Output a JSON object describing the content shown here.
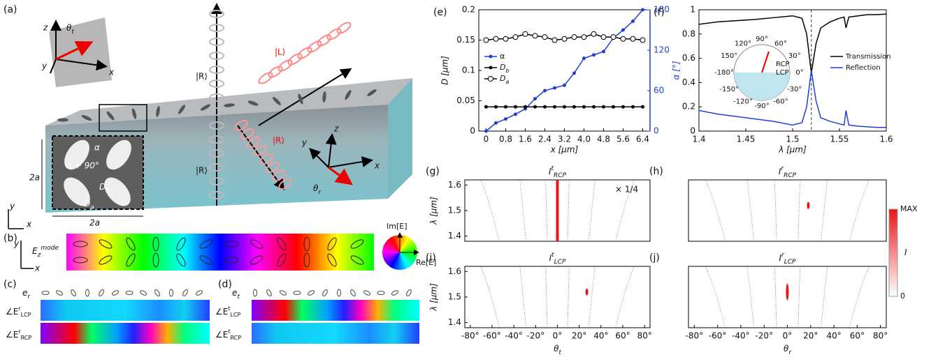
{
  "diagram": {
    "panel_a": {
      "label": "(a)",
      "axes1": [
        "z",
        "y",
        "x"
      ],
      "theta_t": [
        "θ",
        "t"
      ],
      "kets": [
        "|R⟩",
        "|L⟩",
        "|R⟩",
        "|R⟩"
      ],
      "alpha": "α",
      "alpha90": "α + 90°",
      "Db": [
        "D",
        "b"
      ],
      "Da": [
        "D",
        "a"
      ],
      "size": [
        "2a",
        "2a"
      ],
      "axes2": [
        "y",
        "x"
      ],
      "axes3": [
        "z",
        "y",
        "x"
      ],
      "theta_r": [
        "θ",
        "r"
      ]
    },
    "panel_b": {
      "label": "(b)",
      "field": [
        "E",
        "z",
        "mode"
      ],
      "axes": [
        "y",
        "x"
      ],
      "im": "Im[E]",
      "re": "Re[E]"
    },
    "panel_c": {
      "label": "(c)",
      "e": [
        "e",
        "r"
      ],
      "rows": [
        [
          "∠E",
          "r",
          "LCP"
        ],
        [
          "∠E",
          "r",
          "RCP"
        ]
      ]
    },
    "panel_d": {
      "label": "(d)",
      "e": [
        "e",
        "t"
      ],
      "rows": [
        [
          "∠E",
          "t",
          "LCP"
        ],
        [
          "∠E",
          "t",
          "RCP"
        ]
      ]
    }
  },
  "chart_data": [
    {
      "type": "line",
      "label": "(e)",
      "xlabel": "x [μm]",
      "ylabel": "D [μm]",
      "y2label": "α [°]",
      "y2color": "#1f3fd6",
      "x": [
        0,
        0.4,
        0.8,
        1.2,
        1.6,
        2.0,
        2.4,
        2.8,
        3.2,
        3.6,
        4.0,
        4.4,
        4.8,
        5.2,
        5.6,
        6.0,
        6.4
      ],
      "xlim": [
        -0.3,
        6.7
      ],
      "xticks": [
        0,
        0.8,
        1.6,
        2.4,
        3.2,
        {
          "value": 4,
          "label": "4.0"
        },
        4.8,
        5.6,
        6.4
      ],
      "ylim": [
        0,
        0.2
      ],
      "yticks": [
        0,
        0.05,
        0.1,
        0.15,
        0.2
      ],
      "y2lim": [
        0,
        180
      ],
      "y2ticks": [
        0,
        60,
        120,
        180
      ],
      "legend": "center left",
      "series": [
        {
          "name": "α",
          "color": "#1f3fd6",
          "axis": "y2",
          "marker": "dot",
          "values": [
            0,
            12,
            18,
            25,
            33,
            48,
            60,
            64,
            68,
            86,
            108,
            113,
            118,
            138,
            150,
            163,
            180
          ]
        },
        {
          "name": "D",
          "sub": "b",
          "color": "#000000",
          "marker": "dot",
          "values": [
            0.04,
            0.04,
            0.04,
            0.04,
            0.04,
            0.04,
            0.04,
            0.04,
            0.04,
            0.04,
            0.04,
            0.04,
            0.04,
            0.04,
            0.04,
            0.04,
            0.04
          ]
        },
        {
          "name": "D",
          "sub": "a",
          "color": "#000000",
          "marker": "open-circle",
          "values": [
            0.15,
            0.152,
            0.152,
            0.155,
            0.16,
            0.157,
            0.155,
            0.15,
            0.152,
            0.155,
            0.155,
            0.16,
            0.155,
            0.155,
            0.152,
            0.152,
            0.15
          ]
        }
      ]
    },
    {
      "type": "line",
      "label": "(f)",
      "xlabel": "λ [μm]",
      "legend": "center right",
      "x": [
        1.4,
        1.42,
        1.44,
        1.46,
        1.48,
        1.5,
        1.51,
        1.515,
        1.52,
        1.525,
        1.53,
        1.54,
        1.55,
        1.555,
        1.557,
        1.56,
        1.57,
        1.58,
        1.59,
        1.6
      ],
      "xlim": [
        1.4,
        1.6
      ],
      "xticks": [
        1.4,
        1.45,
        1.5,
        1.55,
        1.6
      ],
      "ylim": [
        0,
        1
      ],
      "yticks": [
        0,
        0.2,
        0.4,
        0.6,
        0.8,
        1
      ],
      "vline": 1.52,
      "inset_labels": [
        "90°",
        "60°",
        "30°",
        "0°",
        "-30°",
        "-60°",
        "-90°",
        "-120°",
        "-150°",
        "-180°",
        "150°",
        "120°",
        "RCP",
        "LCP"
      ],
      "series": [
        {
          "name": "Transmission",
          "color": "#000000",
          "values": [
            0.88,
            0.9,
            0.91,
            0.92,
            0.935,
            0.95,
            0.93,
            0.8,
            0.48,
            0.72,
            0.85,
            0.9,
            0.93,
            0.94,
            0.85,
            0.94,
            0.95,
            0.96,
            0.96,
            0.965
          ]
        },
        {
          "name": "Reflection",
          "color": "#1f3fd6",
          "values": [
            0.17,
            0.14,
            0.12,
            0.1,
            0.08,
            0.05,
            0.07,
            0.2,
            0.5,
            0.25,
            0.11,
            0.08,
            0.06,
            0.05,
            0.17,
            0.05,
            0.04,
            0.035,
            0.03,
            0.03
          ]
        }
      ]
    },
    {
      "type": "heatmap",
      "label": "(g)",
      "title": "I",
      "title_sup": "t",
      "title_sub": "RCP",
      "ylabel": "λ [μm]",
      "annotation": "× 1/4",
      "xlim": [
        -85,
        85
      ],
      "ylim": [
        1.38,
        1.62
      ],
      "yticks": [
        1.4,
        1.5,
        1.6
      ],
      "streak_x": 0
    },
    {
      "type": "heatmap",
      "label": "(h)",
      "title": "I",
      "title_sup": "r",
      "title_sub": "RCP",
      "xlim": [
        -85,
        85
      ],
      "ylim": [
        1.38,
        1.62
      ],
      "spot": {
        "x": 18,
        "y": 1.52
      }
    },
    {
      "type": "heatmap",
      "label": "(i)",
      "title": "I",
      "title_sup": "t",
      "title_sub": "LCP",
      "ylabel": "λ [μm]",
      "xlabel": "θ",
      "xlabel_sub": "t",
      "xlim": [
        -85,
        85
      ],
      "ylim": [
        1.38,
        1.62
      ],
      "yticks": [
        1.4,
        1.5,
        1.6
      ],
      "xticks": [
        {
          "value": -80,
          "label": "-80°"
        },
        {
          "value": -60,
          "label": "-60°"
        },
        {
          "value": -40,
          "label": "-40°"
        },
        {
          "value": -20,
          "label": "-20°"
        },
        {
          "value": 0,
          "label": "0°"
        },
        {
          "value": 20,
          "label": "20°"
        },
        {
          "value": 40,
          "label": "40°"
        },
        {
          "value": 60,
          "label": "60°"
        },
        {
          "value": 80,
          "label": "80°"
        }
      ],
      "spot": {
        "x": 27,
        "y": 1.52
      }
    },
    {
      "type": "heatmap",
      "label": "(j)",
      "title": "I",
      "title_sup": "r",
      "title_sub": "LCP",
      "xlabel": "θ",
      "xlabel_sub": "r",
      "xlim": [
        -85,
        85
      ],
      "ylim": [
        1.38,
        1.62
      ],
      "xticks": [
        {
          "value": -80,
          "label": "-80°"
        },
        {
          "value": -60,
          "label": "-60°"
        },
        {
          "value": -40,
          "label": "-40°"
        },
        {
          "value": -20,
          "label": "-20°"
        },
        {
          "value": 0,
          "label": "0°"
        },
        {
          "value": 20,
          "label": "20°"
        },
        {
          "value": 40,
          "label": "40°"
        },
        {
          "value": 60,
          "label": "60°"
        },
        {
          "value": 80,
          "label": "80°"
        }
      ],
      "spot": {
        "x": 0,
        "y": 1.52
      }
    },
    {
      "type": "colorbar",
      "max_label": "MAX",
      "min_label": "0",
      "label": "I",
      "color": "#e8161b"
    }
  ]
}
